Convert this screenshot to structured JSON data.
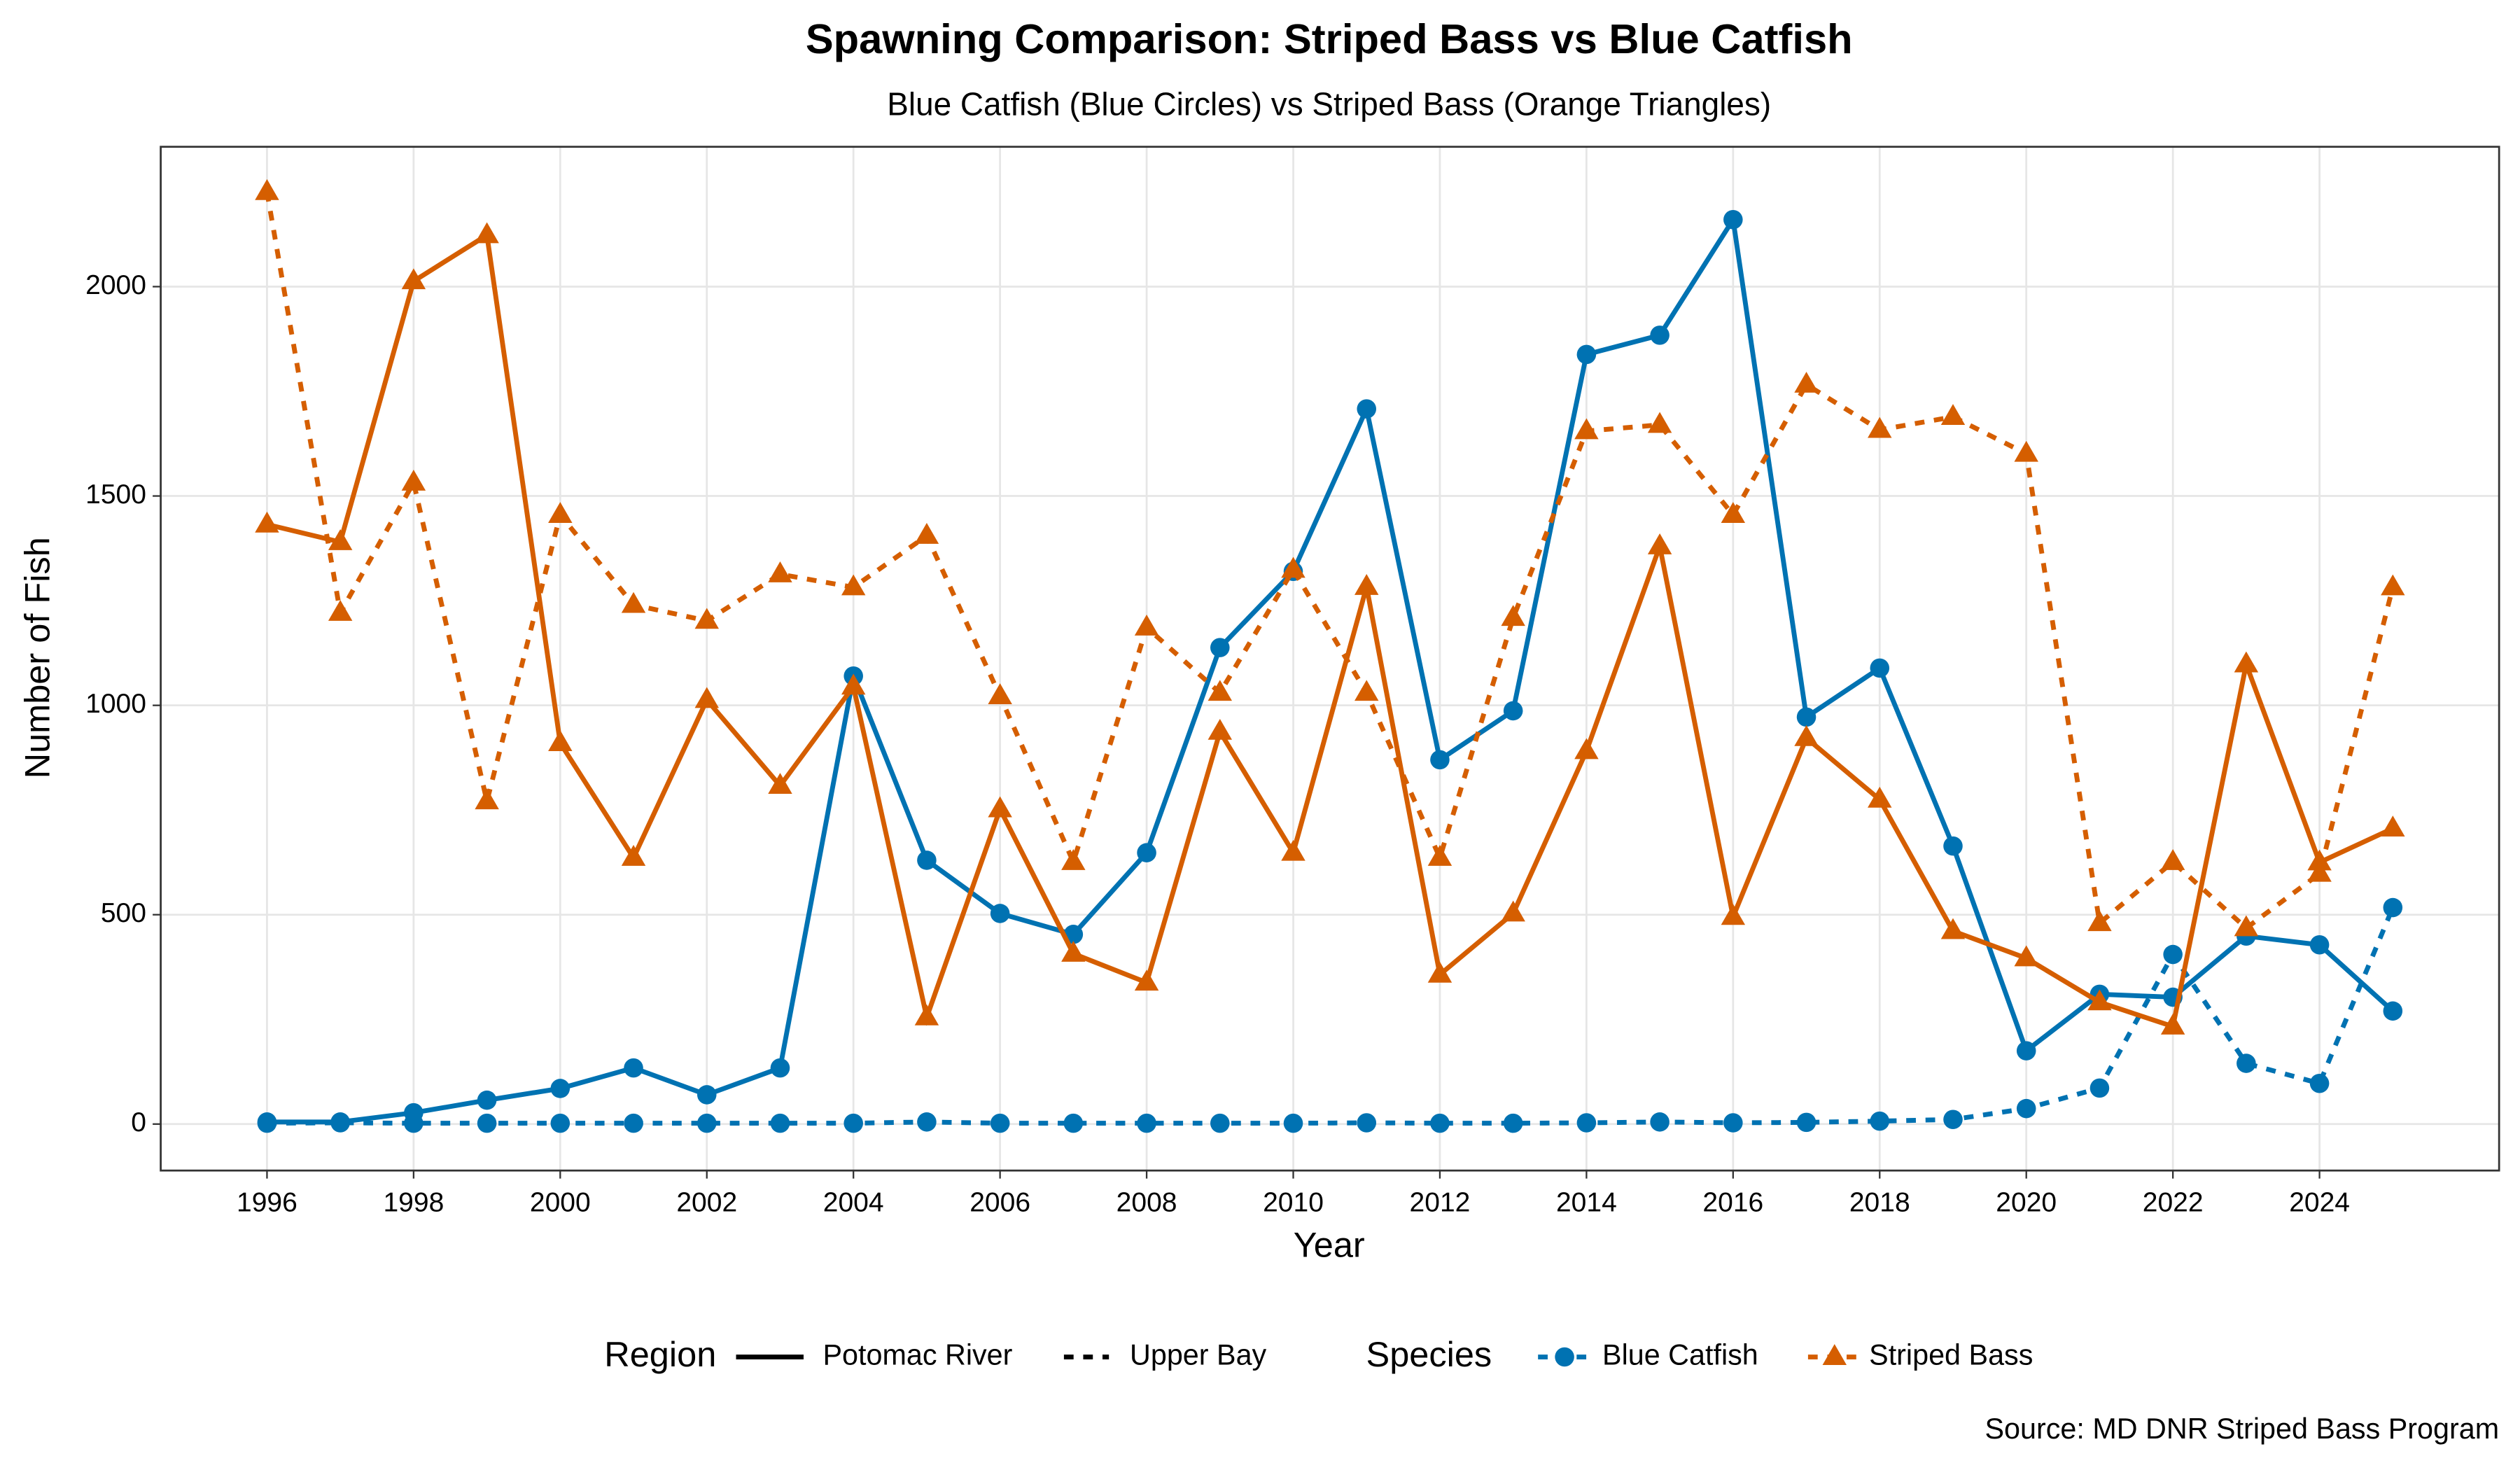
{
  "chart_data": {
    "type": "line",
    "title": "Spawning Comparison: Striped Bass vs Blue Catfish",
    "subtitle": "Blue Catfish (Blue Circles) vs Striped Bass (Orange Triangles)",
    "x_label": "Year",
    "y_label": "Number of Fish",
    "caption": "Source: MD DNR Striped Bass Program",
    "x": [
      1996,
      1997,
      1998,
      1999,
      2000,
      2001,
      2002,
      2003,
      2004,
      2005,
      2006,
      2007,
      2008,
      2009,
      2010,
      2011,
      2012,
      2013,
      2014,
      2015,
      2016,
      2017,
      2018,
      2019,
      2020,
      2021,
      2022,
      2023,
      2024,
      2025
    ],
    "xlim": [
      1994.55,
      2026.45
    ],
    "xticks": [
      1996,
      1998,
      2000,
      2002,
      2004,
      2006,
      2008,
      2010,
      2012,
      2014,
      2016,
      2018,
      2020,
      2022,
      2024
    ],
    "ylim": [
      -111,
      2334
    ],
    "yticks": [
      0,
      500,
      1000,
      1500,
      2000
    ],
    "grid": true,
    "legend": {
      "region": {
        "title": "Region",
        "items": [
          {
            "label": "Potomac River",
            "dash": "solid"
          },
          {
            "label": "Upper Bay",
            "dash": "dashed"
          }
        ]
      },
      "species": {
        "title": "Species",
        "items": [
          {
            "label": "Blue Catfish",
            "color": "#0072B2",
            "marker": "circle"
          },
          {
            "label": "Striped Bass",
            "color": "#D55E00",
            "marker": "triangle"
          }
        ]
      }
    },
    "series": [
      {
        "species": "Blue Catfish",
        "region": "Potomac River",
        "values": [
          5,
          5,
          27,
          57,
          85,
          134,
          70,
          134,
          1070,
          630,
          503,
          453,
          648,
          1138,
          1320,
          1708,
          870,
          987,
          1838,
          1884,
          2160,
          972,
          1089,
          664,
          175,
          310,
          303,
          449,
          428,
          270
        ]
      },
      {
        "species": "Blue Catfish",
        "region": "Upper Bay",
        "values": [
          2,
          3,
          2,
          2,
          2,
          2,
          2,
          2,
          2,
          5,
          2,
          2,
          2,
          2,
          2,
          3,
          2,
          2,
          3,
          5,
          3,
          4,
          7,
          11,
          37,
          86,
          405,
          145,
          97,
          517
        ]
      },
      {
        "species": "Striped Bass",
        "region": "Potomac River",
        "values": [
          1432,
          1390,
          2013,
          2123,
          910,
          636,
          1013,
          808,
          1045,
          255,
          752,
          407,
          338,
          937,
          648,
          1283,
          357,
          503,
          891,
          1380,
          495,
          922,
          775,
          461,
          396,
          291,
          233,
          1098,
          625,
          706
        ]
      },
      {
        "species": "Striped Bass",
        "region": "Upper Bay",
        "values": [
          2226,
          1221,
          1532,
          771,
          1455,
          1240,
          1202,
          1313,
          1282,
          1405,
          1022,
          626,
          1186,
          1030,
          1324,
          1030,
          636,
          1209,
          1655,
          1670,
          1455,
          1766,
          1658,
          1689,
          1601,
          480,
          626,
          468,
          598,
          1282
        ]
      }
    ]
  }
}
